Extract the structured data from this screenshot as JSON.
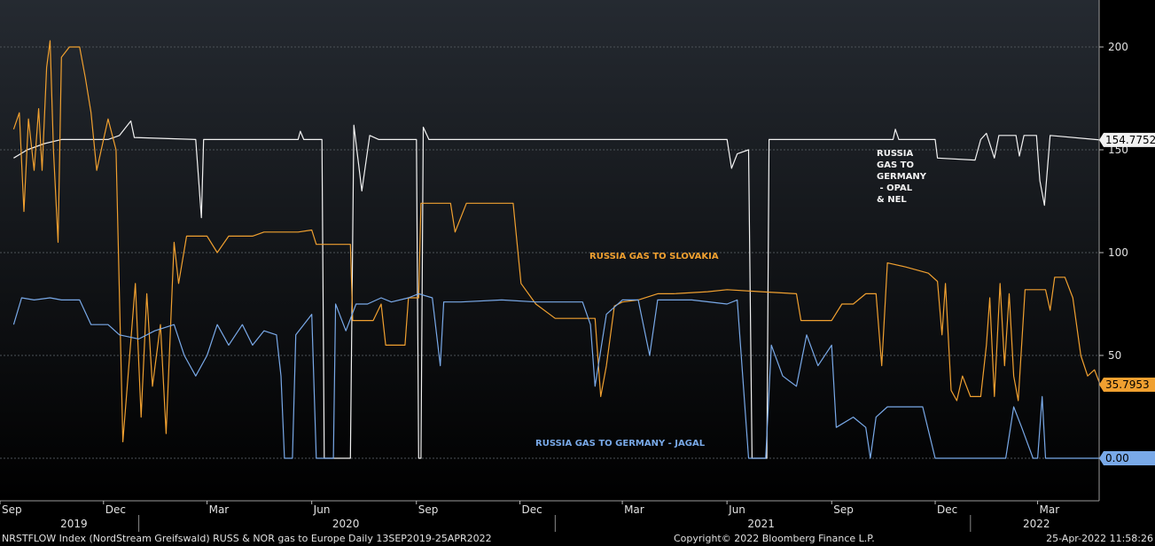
{
  "chart_data": {
    "type": "line",
    "x_axis": {
      "month_labels": [
        "Sep",
        "Dec",
        "Mar",
        "Jun",
        "Sep",
        "Dec",
        "Mar",
        "Jun",
        "Sep",
        "Dec",
        "Mar"
      ],
      "year_labels": [
        "2019",
        "2020",
        "2021",
        "2022"
      ]
    },
    "y_axis": {
      "ticks": [
        50,
        100,
        150,
        200
      ],
      "ylim": [
        -20,
        237
      ],
      "side": "right"
    },
    "grid": true,
    "series": [
      {
        "name": "RUSSIA GAS TO GERMANY - OPAL & NEL",
        "label_lines": [
          "RUSSIA",
          "GAS TO",
          "GERMANY",
          " - OPAL",
          "& NEL"
        ],
        "color": "#f2f2f2",
        "last_value": "154.7752",
        "points": [
          [
            "2019-09-13",
            146
          ],
          [
            "2019-09-25",
            150
          ],
          [
            "2019-10-10",
            153
          ],
          [
            "2019-10-25",
            155
          ],
          [
            "2019-11-20",
            155
          ],
          [
            "2019-12-05",
            155
          ],
          [
            "2019-12-15",
            157
          ],
          [
            "2019-12-25",
            164
          ],
          [
            "2019-12-28",
            156
          ],
          [
            "2020-02-20",
            155
          ],
          [
            "2020-02-25",
            117
          ],
          [
            "2020-02-27",
            155
          ],
          [
            "2020-05-20",
            155
          ],
          [
            "2020-05-22",
            159
          ],
          [
            "2020-05-25",
            155
          ],
          [
            "2020-06-10",
            155
          ],
          [
            "2020-06-12",
            0
          ],
          [
            "2020-07-05",
            0
          ],
          [
            "2020-07-08",
            162
          ],
          [
            "2020-07-15",
            130
          ],
          [
            "2020-07-22",
            157
          ],
          [
            "2020-07-30",
            155
          ],
          [
            "2020-09-01",
            155
          ],
          [
            "2020-09-03",
            0
          ],
          [
            "2020-09-05",
            0
          ],
          [
            "2020-09-07",
            161
          ],
          [
            "2020-09-12",
            155
          ],
          [
            "2021-06-01",
            155
          ],
          [
            "2021-06-05",
            141
          ],
          [
            "2021-06-10",
            148
          ],
          [
            "2021-06-20",
            150
          ],
          [
            "2021-06-23",
            0
          ],
          [
            "2021-07-06",
            0
          ],
          [
            "2021-07-08",
            155
          ],
          [
            "2021-10-25",
            155
          ],
          [
            "2021-10-27",
            160
          ],
          [
            "2021-10-30",
            155
          ],
          [
            "2021-12-01",
            155
          ],
          [
            "2021-12-03",
            146
          ],
          [
            "2022-01-05",
            145
          ],
          [
            "2022-01-10",
            155
          ],
          [
            "2022-01-15",
            158
          ],
          [
            "2022-01-22",
            146
          ],
          [
            "2022-01-26",
            157
          ],
          [
            "2022-02-10",
            157
          ],
          [
            "2022-02-13",
            147
          ],
          [
            "2022-02-17",
            157
          ],
          [
            "2022-02-28",
            157
          ],
          [
            "2022-03-03",
            135
          ],
          [
            "2022-03-07",
            123
          ],
          [
            "2022-03-12",
            157
          ],
          [
            "2022-04-25",
            154.8
          ]
        ]
      },
      {
        "name": "RUSSIA GAS TO SLOVAKIA",
        "label_lines": [
          "RUSSIA GAS TO SLOVAKIA"
        ],
        "color": "#f0a030",
        "last_value": "35.7953",
        "points": [
          [
            "2019-09-13",
            160
          ],
          [
            "2019-09-18",
            168
          ],
          [
            "2019-09-22",
            120
          ],
          [
            "2019-09-26",
            165
          ],
          [
            "2019-10-01",
            140
          ],
          [
            "2019-10-05",
            170
          ],
          [
            "2019-10-08",
            140
          ],
          [
            "2019-10-12",
            190
          ],
          [
            "2019-10-15",
            203
          ],
          [
            "2019-10-18",
            150
          ],
          [
            "2019-10-22",
            105
          ],
          [
            "2019-10-25",
            195
          ],
          [
            "2019-11-01",
            200
          ],
          [
            "2019-11-10",
            200
          ],
          [
            "2019-11-15",
            185
          ],
          [
            "2019-11-20",
            168
          ],
          [
            "2019-11-25",
            140
          ],
          [
            "2019-12-05",
            165
          ],
          [
            "2019-12-12",
            150
          ],
          [
            "2019-12-18",
            8
          ],
          [
            "2019-12-24",
            50
          ],
          [
            "2019-12-29",
            85
          ],
          [
            "2020-01-03",
            20
          ],
          [
            "2020-01-08",
            80
          ],
          [
            "2020-01-13",
            35
          ],
          [
            "2020-01-20",
            65
          ],
          [
            "2020-01-25",
            12
          ],
          [
            "2020-02-01",
            105
          ],
          [
            "2020-02-05",
            85
          ],
          [
            "2020-02-12",
            108
          ],
          [
            "2020-02-20",
            108
          ],
          [
            "2020-03-01",
            108
          ],
          [
            "2020-03-10",
            100
          ],
          [
            "2020-03-20",
            108
          ],
          [
            "2020-04-01",
            108
          ],
          [
            "2020-04-10",
            108
          ],
          [
            "2020-04-20",
            110
          ],
          [
            "2020-05-01",
            110
          ],
          [
            "2020-05-20",
            110
          ],
          [
            "2020-06-01",
            111
          ],
          [
            "2020-06-05",
            104
          ],
          [
            "2020-06-25",
            104
          ],
          [
            "2020-07-05",
            104
          ],
          [
            "2020-07-07",
            67
          ],
          [
            "2020-07-25",
            67
          ],
          [
            "2020-08-01",
            75
          ],
          [
            "2020-08-05",
            55
          ],
          [
            "2020-08-22",
            55
          ],
          [
            "2020-08-25",
            78
          ],
          [
            "2020-09-03",
            78
          ],
          [
            "2020-09-05",
            124
          ],
          [
            "2020-09-20",
            124
          ],
          [
            "2020-10-01",
            124
          ],
          [
            "2020-10-05",
            110
          ],
          [
            "2020-10-15",
            124
          ],
          [
            "2020-11-15",
            124
          ],
          [
            "2020-11-25",
            124
          ],
          [
            "2020-12-02",
            85
          ],
          [
            "2020-12-15",
            75
          ],
          [
            "2021-01-01",
            68
          ],
          [
            "2021-01-20",
            68
          ],
          [
            "2021-02-05",
            68
          ],
          [
            "2021-02-10",
            30
          ],
          [
            "2021-02-15",
            45
          ],
          [
            "2021-02-22",
            74
          ],
          [
            "2021-03-01",
            76
          ],
          [
            "2021-03-15",
            77
          ],
          [
            "2021-04-01",
            80
          ],
          [
            "2021-04-15",
            80
          ],
          [
            "2021-05-15",
            81
          ],
          [
            "2021-06-01",
            82
          ],
          [
            "2021-07-01",
            81
          ],
          [
            "2021-08-01",
            80
          ],
          [
            "2021-08-05",
            67
          ],
          [
            "2021-08-20",
            67
          ],
          [
            "2021-09-01",
            67
          ],
          [
            "2021-09-10",
            75
          ],
          [
            "2021-09-20",
            75
          ],
          [
            "2021-10-01",
            80
          ],
          [
            "2021-10-10",
            80
          ],
          [
            "2021-10-15",
            45
          ],
          [
            "2021-10-20",
            95
          ],
          [
            "2021-11-05",
            93
          ],
          [
            "2021-11-25",
            90
          ],
          [
            "2021-12-03",
            86
          ],
          [
            "2021-12-07",
            60
          ],
          [
            "2021-12-10",
            85
          ],
          [
            "2021-12-15",
            33
          ],
          [
            "2021-12-20",
            28
          ],
          [
            "2021-12-25",
            40
          ],
          [
            "2022-01-01",
            30
          ],
          [
            "2022-01-10",
            30
          ],
          [
            "2022-01-15",
            55
          ],
          [
            "2022-01-18",
            78
          ],
          [
            "2022-01-22",
            30
          ],
          [
            "2022-01-27",
            85
          ],
          [
            "2022-01-31",
            45
          ],
          [
            "2022-02-04",
            80
          ],
          [
            "2022-02-08",
            40
          ],
          [
            "2022-02-12",
            28
          ],
          [
            "2022-02-18",
            82
          ],
          [
            "2022-03-08",
            82
          ],
          [
            "2022-03-12",
            72
          ],
          [
            "2022-03-16",
            88
          ],
          [
            "2022-03-25",
            88
          ],
          [
            "2022-04-01",
            78
          ],
          [
            "2022-04-08",
            50
          ],
          [
            "2022-04-14",
            40
          ],
          [
            "2022-04-20",
            43
          ],
          [
            "2022-04-25",
            35.8
          ]
        ]
      },
      {
        "name": "RUSSIA GAS TO GERMANY - JAGAL",
        "label_lines": [
          "RUSSIA GAS TO GERMANY - JAGAL"
        ],
        "color": "#79a9e8",
        "last_value": "0.00",
        "points": [
          [
            "2019-09-13",
            65
          ],
          [
            "2019-09-20",
            78
          ],
          [
            "2019-10-01",
            77
          ],
          [
            "2019-10-15",
            78
          ],
          [
            "2019-10-25",
            77
          ],
          [
            "2019-11-10",
            77
          ],
          [
            "2019-11-20",
            65
          ],
          [
            "2019-12-05",
            65
          ],
          [
            "2019-12-15",
            60
          ],
          [
            "2020-01-01",
            58
          ],
          [
            "2020-01-15",
            62
          ],
          [
            "2020-02-01",
            65
          ],
          [
            "2020-02-10",
            50
          ],
          [
            "2020-02-20",
            40
          ],
          [
            "2020-03-01",
            50
          ],
          [
            "2020-03-10",
            65
          ],
          [
            "2020-03-20",
            55
          ],
          [
            "2020-04-01",
            65
          ],
          [
            "2020-04-10",
            55
          ],
          [
            "2020-04-20",
            62
          ],
          [
            "2020-05-01",
            60
          ],
          [
            "2020-05-05",
            40
          ],
          [
            "2020-05-08",
            0
          ],
          [
            "2020-05-15",
            0
          ],
          [
            "2020-05-18",
            60
          ],
          [
            "2020-05-25",
            65
          ],
          [
            "2020-06-01",
            70
          ],
          [
            "2020-06-05",
            0
          ],
          [
            "2020-06-20",
            0
          ],
          [
            "2020-06-22",
            75
          ],
          [
            "2020-07-01",
            62
          ],
          [
            "2020-07-10",
            75
          ],
          [
            "2020-07-20",
            75
          ],
          [
            "2020-08-01",
            78
          ],
          [
            "2020-08-10",
            76
          ],
          [
            "2020-08-25",
            78
          ],
          [
            "2020-09-03",
            80
          ],
          [
            "2020-09-15",
            78
          ],
          [
            "2020-09-22",
            45
          ],
          [
            "2020-09-25",
            76
          ],
          [
            "2020-10-10",
            76
          ],
          [
            "2020-11-15",
            77
          ],
          [
            "2020-12-15",
            76
          ],
          [
            "2021-01-10",
            76
          ],
          [
            "2021-01-25",
            76
          ],
          [
            "2021-02-01",
            65
          ],
          [
            "2021-02-05",
            35
          ],
          [
            "2021-02-15",
            70
          ],
          [
            "2021-03-01",
            77
          ],
          [
            "2021-03-15",
            77
          ],
          [
            "2021-03-25",
            50
          ],
          [
            "2021-04-01",
            77
          ],
          [
            "2021-05-01",
            77
          ],
          [
            "2021-06-01",
            75
          ],
          [
            "2021-06-10",
            77
          ],
          [
            "2021-06-20",
            0
          ],
          [
            "2021-07-05",
            0
          ],
          [
            "2021-07-10",
            55
          ],
          [
            "2021-07-20",
            40
          ],
          [
            "2021-08-01",
            35
          ],
          [
            "2021-08-10",
            60
          ],
          [
            "2021-08-20",
            45
          ],
          [
            "2021-09-01",
            55
          ],
          [
            "2021-09-05",
            15
          ],
          [
            "2021-09-20",
            20
          ],
          [
            "2021-10-01",
            15
          ],
          [
            "2021-10-05",
            0
          ],
          [
            "2021-10-10",
            20
          ],
          [
            "2021-10-20",
            25
          ],
          [
            "2021-11-01",
            25
          ],
          [
            "2021-11-20",
            25
          ],
          [
            "2021-12-01",
            0
          ],
          [
            "2022-01-01",
            0
          ],
          [
            "2022-02-01",
            0
          ],
          [
            "2022-02-08",
            25
          ],
          [
            "2022-02-15",
            15
          ],
          [
            "2022-02-25",
            0
          ],
          [
            "2022-03-01",
            0
          ],
          [
            "2022-03-05",
            30
          ],
          [
            "2022-03-08",
            0
          ],
          [
            "2022-04-25",
            0
          ]
        ]
      }
    ]
  },
  "footer": {
    "left": "NRSTFLOW Index (NordStream Greifswald) RUSS & NOR gas to Europe  Daily 13SEP2019-25APR2022",
    "center": "Copyright© 2022 Bloomberg Finance L.P.",
    "right": "25-Apr-2022 11:58:26"
  }
}
